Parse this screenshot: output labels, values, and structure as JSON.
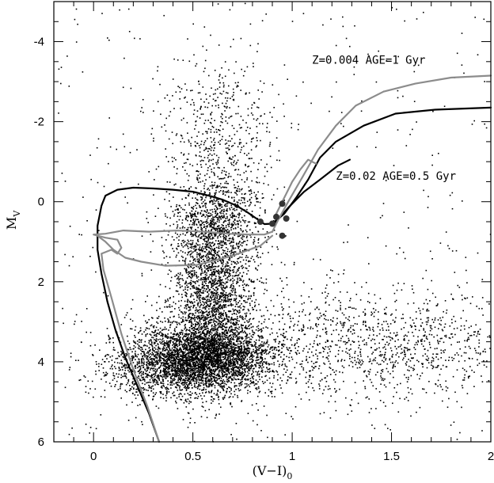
{
  "chart_data": {
    "type": "scatter",
    "title": "",
    "xlabel": "(V−I)",
    "xlabel_sub": "0",
    "ylabel": "M",
    "ylabel_sub": "V",
    "xlim": [
      -0.2,
      2.0
    ],
    "ylim": [
      6,
      -5
    ],
    "y_inverted": true,
    "grid": false,
    "x_ticks": [
      0,
      0.5,
      1,
      1.5,
      2
    ],
    "x_tick_labels": [
      "0",
      "0.5",
      "1",
      "1.5",
      "2"
    ],
    "y_ticks": [
      -4,
      -2,
      0,
      2,
      4,
      6
    ],
    "y_tick_labels": [
      "-4",
      "-2",
      "0",
      "2",
      "4",
      "6"
    ],
    "annotations": [
      {
        "text": "Z=0.004  AGE=1 Gyr",
        "x": 1.1,
        "y": -3.45
      },
      {
        "text": "Z=0.02  AGE=0.5 Gyr",
        "x": 1.22,
        "y": -0.55
      }
    ],
    "series": [
      {
        "kind": "isochrone",
        "color": "#000000",
        "points": [
          [
            0.33,
            6.0
          ],
          [
            0.28,
            5.3
          ],
          [
            0.22,
            4.6
          ],
          [
            0.16,
            3.9
          ],
          [
            0.11,
            3.2
          ],
          [
            0.07,
            2.5
          ],
          [
            0.04,
            1.8
          ],
          [
            0.02,
            1.2
          ],
          [
            0.02,
            0.6
          ],
          [
            0.04,
            0.1
          ],
          [
            0.06,
            -0.15
          ],
          [
            0.12,
            -0.3
          ],
          [
            0.2,
            -0.35
          ],
          [
            0.3,
            -0.33
          ],
          [
            0.4,
            -0.3
          ],
          [
            0.5,
            -0.25
          ],
          [
            0.58,
            -0.15
          ],
          [
            0.65,
            -0.05
          ],
          [
            0.72,
            0.1
          ],
          [
            0.77,
            0.25
          ],
          [
            0.82,
            0.42
          ],
          [
            0.86,
            0.56
          ],
          [
            0.9,
            0.55
          ],
          [
            0.96,
            0.3
          ],
          [
            1.02,
            -0.1
          ],
          [
            1.08,
            -0.55
          ],
          [
            1.14,
            -1.1
          ],
          [
            1.22,
            -1.5
          ],
          [
            1.36,
            -1.9
          ],
          [
            1.52,
            -2.2
          ],
          [
            1.72,
            -2.3
          ],
          [
            2.0,
            -2.35
          ]
        ]
      },
      {
        "kind": "isochrone",
        "color": "#000000",
        "points": [
          [
            0.91,
            0.55
          ],
          [
            0.98,
            0.15
          ],
          [
            1.06,
            -0.25
          ],
          [
            1.14,
            -0.55
          ],
          [
            1.23,
            -0.9
          ],
          [
            1.29,
            -1.05
          ]
        ]
      },
      {
        "kind": "isochrone",
        "color": "#8c8c8c",
        "points": [
          [
            0.33,
            6.0
          ],
          [
            0.27,
            5.1
          ],
          [
            0.2,
            4.2
          ],
          [
            0.14,
            3.3
          ],
          [
            0.09,
            2.4
          ],
          [
            0.05,
            1.7
          ],
          [
            0.04,
            1.3
          ],
          [
            0.09,
            1.2
          ],
          [
            0.12,
            1.3
          ],
          [
            0.14,
            1.15
          ],
          [
            0.12,
            0.95
          ],
          [
            0.06,
            0.9
          ],
          [
            0.02,
            0.85
          ],
          [
            0.0,
            0.82
          ],
          [
            0.06,
            0.8
          ],
          [
            0.15,
            0.72
          ],
          [
            0.28,
            0.75
          ],
          [
            0.42,
            0.72
          ],
          [
            0.56,
            0.75
          ],
          [
            0.68,
            0.8
          ],
          [
            0.78,
            0.82
          ],
          [
            0.86,
            0.82
          ],
          [
            0.9,
            0.75
          ],
          [
            0.93,
            0.45
          ],
          [
            0.98,
            0.0
          ],
          [
            1.05,
            -0.6
          ],
          [
            1.13,
            -1.3
          ],
          [
            1.22,
            -1.9
          ],
          [
            1.32,
            -2.4
          ],
          [
            1.46,
            -2.75
          ],
          [
            1.62,
            -2.95
          ],
          [
            1.8,
            -3.1
          ],
          [
            2.0,
            -3.15
          ]
        ]
      },
      {
        "kind": "isochrone",
        "color": "#8c8c8c",
        "points": [
          [
            0.02,
            0.85
          ],
          [
            0.06,
            1.0
          ],
          [
            0.1,
            1.2
          ],
          [
            0.16,
            1.4
          ],
          [
            0.24,
            1.5
          ],
          [
            0.36,
            1.6
          ],
          [
            0.52,
            1.58
          ],
          [
            0.7,
            1.35
          ],
          [
            0.84,
            1.1
          ],
          [
            0.9,
            0.85
          ]
        ]
      },
      {
        "kind": "isochrone",
        "color": "#8c8c8c",
        "points": [
          [
            0.92,
            0.3
          ],
          [
            0.97,
            -0.2
          ],
          [
            1.0,
            -0.5
          ],
          [
            1.04,
            -0.8
          ],
          [
            1.08,
            -1.05
          ],
          [
            1.12,
            -0.95
          ]
        ]
      },
      {
        "kind": "stars",
        "color": "#000000",
        "points": [
          [
            0.84,
            0.5
          ],
          [
            0.9,
            0.55
          ],
          [
            0.95,
            0.85
          ],
          [
            0.97,
            0.42
          ],
          [
            0.92,
            0.38
          ],
          [
            0.95,
            0.05
          ]
        ]
      },
      {
        "kind": "field",
        "color": "#000000",
        "groups": [
          {
            "x_mean": 0.55,
            "x_sd": 0.17,
            "y_mean": 3.9,
            "y_sd": 0.42,
            "n": 3400
          },
          {
            "x_mean": 0.6,
            "x_sd": 0.1,
            "y_mean": 2.3,
            "y_sd": 1.1,
            "n": 2200
          },
          {
            "x_mean": 0.62,
            "x_sd": 0.11,
            "y_mean": 0.6,
            "y_sd": 0.6,
            "n": 700
          },
          {
            "x_mean": 0.63,
            "x_sd": 0.14,
            "y_mean": -1.5,
            "y_sd": 1.1,
            "n": 550
          },
          {
            "x_mean": 1.1,
            "x_sd": 0.45,
            "y_mean": 3.6,
            "y_sd": 0.7,
            "n": 900
          },
          {
            "x_mean": 1.6,
            "x_sd": 0.3,
            "y_mean": 3.6,
            "y_sd": 0.8,
            "n": 500
          },
          {
            "x_mean": 0.3,
            "x_sd": 0.15,
            "y_mean": 4.2,
            "y_sd": 0.35,
            "n": 500
          }
        ],
        "uniform_sprinkle": 420
      }
    ]
  }
}
